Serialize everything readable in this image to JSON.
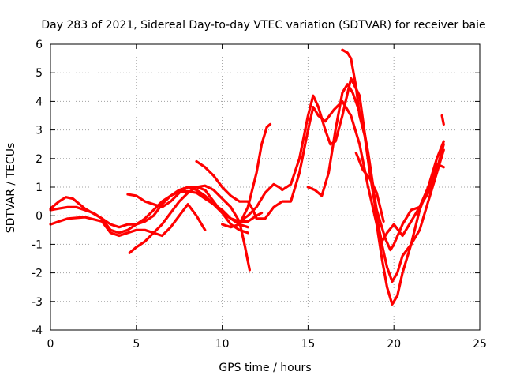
{
  "chart_data": {
    "type": "scatter",
    "title": "Day 283 of 2021, Sidereal Day-to-day VTEC variation (SDTVAR) for receiver baie",
    "xlabel": "GPS time / hours",
    "ylabel": "SDTVAR / TECUs",
    "xlim": [
      0,
      25
    ],
    "ylim": [
      -4,
      6
    ],
    "xticks": [
      0,
      5,
      10,
      15,
      20,
      25
    ],
    "yticks": [
      -4,
      -3,
      -2,
      -1,
      0,
      1,
      2,
      3,
      4,
      5,
      6
    ],
    "grid": true,
    "marker": "+",
    "color": "#ff0000",
    "series": [
      {
        "x": [
          0.0,
          0.5,
          1.0,
          1.5,
          2.0,
          2.5,
          3.0,
          3.5,
          4.0,
          4.5,
          5.0,
          5.5,
          6.0,
          6.5,
          7.0,
          7.5,
          8.0,
          8.5,
          9.0,
          9.5,
          10.0,
          10.5,
          11.0,
          11.5,
          12.0,
          12.3
        ],
        "y": [
          0.2,
          0.25,
          0.3,
          0.3,
          0.2,
          0.1,
          -0.1,
          -0.3,
          -0.4,
          -0.3,
          -0.3,
          -0.1,
          0.2,
          0.5,
          0.7,
          0.85,
          0.85,
          0.8,
          0.6,
          0.4,
          0.1,
          -0.1,
          -0.2,
          -0.2,
          0.0,
          0.1
        ]
      },
      {
        "x": [
          0.0,
          0.5,
          0.9,
          1.3,
          2.0,
          3.0,
          3.5,
          4.0,
          4.5,
          5.0,
          5.5,
          6.0,
          6.5,
          7.0,
          7.5,
          8.0,
          8.5,
          9.0,
          9.5,
          10.0,
          10.5,
          11.0,
          11.5
        ],
        "y": [
          0.25,
          0.5,
          0.65,
          0.6,
          0.25,
          -0.1,
          -0.5,
          -0.6,
          -0.5,
          -0.3,
          -0.2,
          0.0,
          0.4,
          0.7,
          0.9,
          1.0,
          0.9,
          0.7,
          0.4,
          0.2,
          -0.1,
          -0.3,
          -0.4
        ]
      },
      {
        "x": [
          0.0,
          0.5,
          1.0,
          2.0,
          3.0,
          3.5,
          4.0,
          4.5,
          5.0,
          5.5,
          6.0,
          6.5,
          7.0,
          7.5,
          8.0,
          8.5,
          9.0
        ],
        "y": [
          -0.3,
          -0.2,
          -0.1,
          -0.05,
          -0.2,
          -0.6,
          -0.7,
          -0.6,
          -0.5,
          -0.5,
          -0.6,
          -0.7,
          -0.4,
          0.0,
          0.4,
          0.0,
          -0.5
        ]
      },
      {
        "x": [
          4.5,
          5.0,
          5.5,
          6.0,
          6.5,
          7.0,
          7.5,
          8.0,
          8.5,
          9.0,
          9.5,
          10.0,
          10.5,
          11.0,
          11.5
        ],
        "y": [
          0.75,
          0.7,
          0.5,
          0.4,
          0.3,
          0.5,
          0.8,
          1.0,
          1.0,
          0.9,
          0.5,
          0.1,
          -0.3,
          -0.5,
          -0.6
        ]
      },
      {
        "x": [
          4.6,
          5.0,
          5.5,
          6.0,
          6.5,
          7.0,
          7.5,
          8.0,
          8.5,
          9.0,
          9.5,
          10.0,
          10.5,
          11.0,
          11.3,
          11.6
        ],
        "y": [
          -1.3,
          -1.1,
          -0.9,
          -0.6,
          -0.3,
          0.1,
          0.5,
          0.8,
          1.0,
          1.05,
          0.9,
          0.6,
          0.3,
          -0.2,
          -1.0,
          -1.9
        ]
      },
      {
        "x": [
          8.5,
          9.0,
          9.5,
          10.0,
          10.5,
          11.0,
          11.5,
          11.8,
          12.0,
          12.5,
          13.0,
          13.5,
          14.0,
          14.5,
          15.0,
          15.3,
          15.6,
          16.0,
          16.5,
          17.0,
          17.5,
          18.0,
          18.5,
          19.0,
          19.3,
          19.6,
          19.9,
          20.2,
          20.5,
          21.0,
          21.5,
          22.0,
          22.5,
          22.9
        ],
        "y": [
          1.9,
          1.7,
          1.4,
          1.0,
          0.7,
          0.5,
          0.5,
          0.2,
          -0.1,
          -0.1,
          0.3,
          0.5,
          0.5,
          1.5,
          3.0,
          3.8,
          3.5,
          3.3,
          3.7,
          4.0,
          3.5,
          2.5,
          1.0,
          -0.3,
          -1.5,
          -2.5,
          -3.1,
          -2.8,
          -2.0,
          -1.0,
          0.2,
          1.0,
          1.8,
          1.7
        ]
      },
      {
        "x": [
          10.0,
          10.5,
          11.0,
          11.5,
          12.0,
          12.3,
          12.6,
          12.8
        ],
        "y": [
          -0.3,
          -0.4,
          -0.3,
          0.3,
          1.5,
          2.5,
          3.1,
          3.2
        ]
      },
      {
        "x": [
          11.0,
          11.5,
          12.0,
          12.5,
          13.0,
          13.3,
          13.5,
          14.0,
          14.5,
          15.0,
          15.3,
          15.6,
          16.0,
          16.3,
          16.6,
          17.0,
          17.5,
          18.0,
          18.5,
          19.0,
          19.5,
          19.8,
          20.0,
          20.5,
          21.0,
          21.5,
          22.0,
          22.5,
          22.9
        ],
        "y": [
          -0.2,
          0.0,
          0.3,
          0.8,
          1.1,
          1.0,
          0.9,
          1.1,
          2.0,
          3.5,
          4.2,
          3.8,
          3.0,
          2.5,
          2.6,
          3.5,
          4.8,
          4.2,
          2.0,
          0.2,
          -0.8,
          -1.2,
          -1.0,
          -0.3,
          0.2,
          0.3,
          1.0,
          2.0,
          2.6
        ]
      },
      {
        "x": [
          15.0,
          15.4,
          15.8,
          16.2,
          16.6,
          17.0,
          17.3,
          17.6,
          17.9,
          18.2,
          18.5,
          18.8,
          19.0,
          19.3,
          19.6,
          20.0,
          20.5,
          21.0,
          21.5,
          22.0,
          22.5,
          22.9
        ],
        "y": [
          1.0,
          0.9,
          0.7,
          1.5,
          3.0,
          4.3,
          4.6,
          4.3,
          3.8,
          3.2,
          2.2,
          1.0,
          -0.2,
          -0.9,
          -0.6,
          -0.3,
          -0.7,
          -0.2,
          0.3,
          0.8,
          1.6,
          2.5
        ]
      },
      {
        "x": [
          17.0,
          17.3,
          17.5,
          17.8,
          18.0,
          18.3,
          18.6,
          19.0,
          19.3,
          19.6,
          19.9,
          20.2,
          20.5,
          21.0,
          21.5,
          22.0,
          22.5,
          22.9
        ],
        "y": [
          5.8,
          5.7,
          5.5,
          4.5,
          3.5,
          2.8,
          1.5,
          0.0,
          -1.0,
          -1.8,
          -2.3,
          -2.0,
          -1.4,
          -1.0,
          -0.5,
          0.5,
          1.5,
          2.3
        ]
      },
      {
        "x": [
          17.8,
          18.2,
          18.6,
          19.0,
          19.4
        ],
        "y": [
          2.2,
          1.6,
          1.3,
          0.8,
          -0.2
        ]
      },
      {
        "x": [
          22.8,
          22.9
        ],
        "y": [
          3.5,
          3.2
        ]
      }
    ]
  }
}
